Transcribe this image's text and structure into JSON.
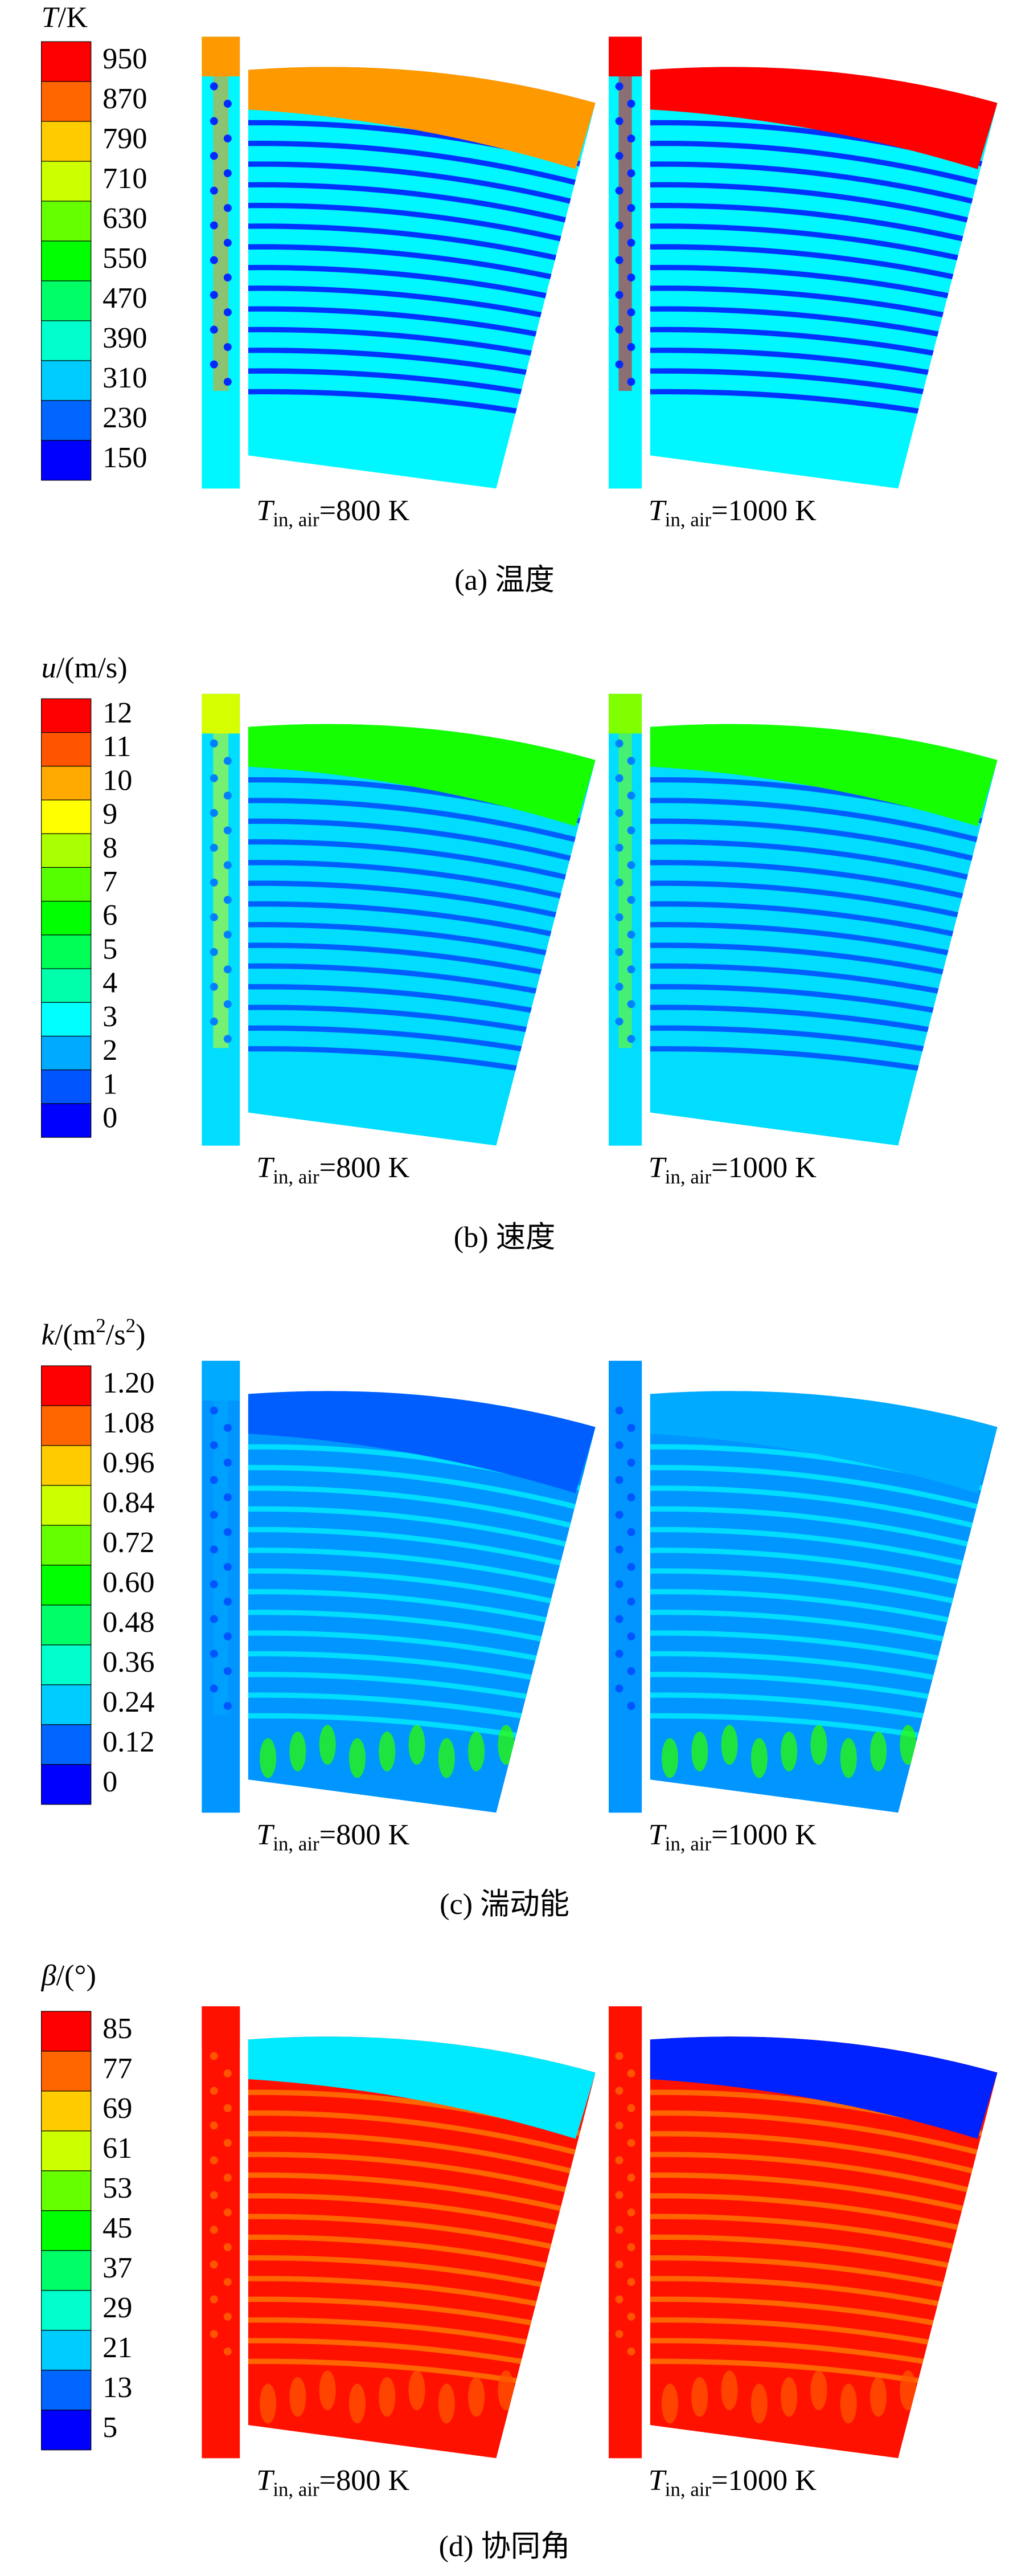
{
  "panels": [
    {
      "legend": {
        "symbol": "T",
        "unit": "/K",
        "labels": [
          "950",
          "870",
          "790",
          "710",
          "630",
          "550",
          "470",
          "390",
          "310",
          "230",
          "150"
        ]
      },
      "images": [
        {
          "symbol": "T",
          "subscript": "in, air",
          "text": "=800 K"
        },
        {
          "symbol": "T",
          "subscript": "in, air",
          "text": "=1000 K"
        }
      ],
      "caption": "(a) 温度"
    },
    {
      "legend": {
        "symbol": "u",
        "unit": "/(m/s)",
        "labels": [
          "12",
          "11",
          "10",
          "9",
          "8",
          "7",
          "6",
          "5",
          "4",
          "3",
          "2",
          "1",
          "0"
        ]
      },
      "images": [
        {
          "symbol": "T",
          "subscript": "in, air",
          "text": "=800 K"
        },
        {
          "symbol": "T",
          "subscript": "in, air",
          "text": "=1000 K"
        }
      ],
      "caption": "(b) 速度"
    },
    {
      "legend": {
        "symbol": "k",
        "unit": "/(m",
        "unit_sup": "2",
        "unit_2": "/s",
        "unit_2_sup": "2",
        "unit_end": ")",
        "labels": [
          "1.20",
          "1.08",
          "0.96",
          "0.84",
          "0.72",
          "0.60",
          "0.48",
          "0.36",
          "0.24",
          "0.12",
          "0"
        ]
      },
      "images": [
        {
          "symbol": "T",
          "subscript": "in, air",
          "text": "=800 K"
        },
        {
          "symbol": "T",
          "subscript": "in, air",
          "text": "=1000 K"
        }
      ],
      "caption": "(c) 湍动能"
    },
    {
      "legend": {
        "symbol": "β",
        "unit": "/(°)",
        "labels": [
          "85",
          "77",
          "69",
          "61",
          "53",
          "45",
          "37",
          "29",
          "21",
          "13",
          "5"
        ]
      },
      "images": [
        {
          "symbol": "T",
          "subscript": "in, air",
          "text": "=800 K"
        },
        {
          "symbol": "T",
          "subscript": "in, air",
          "text": "=1000 K"
        }
      ],
      "caption": "(d) 协同角"
    }
  ]
}
